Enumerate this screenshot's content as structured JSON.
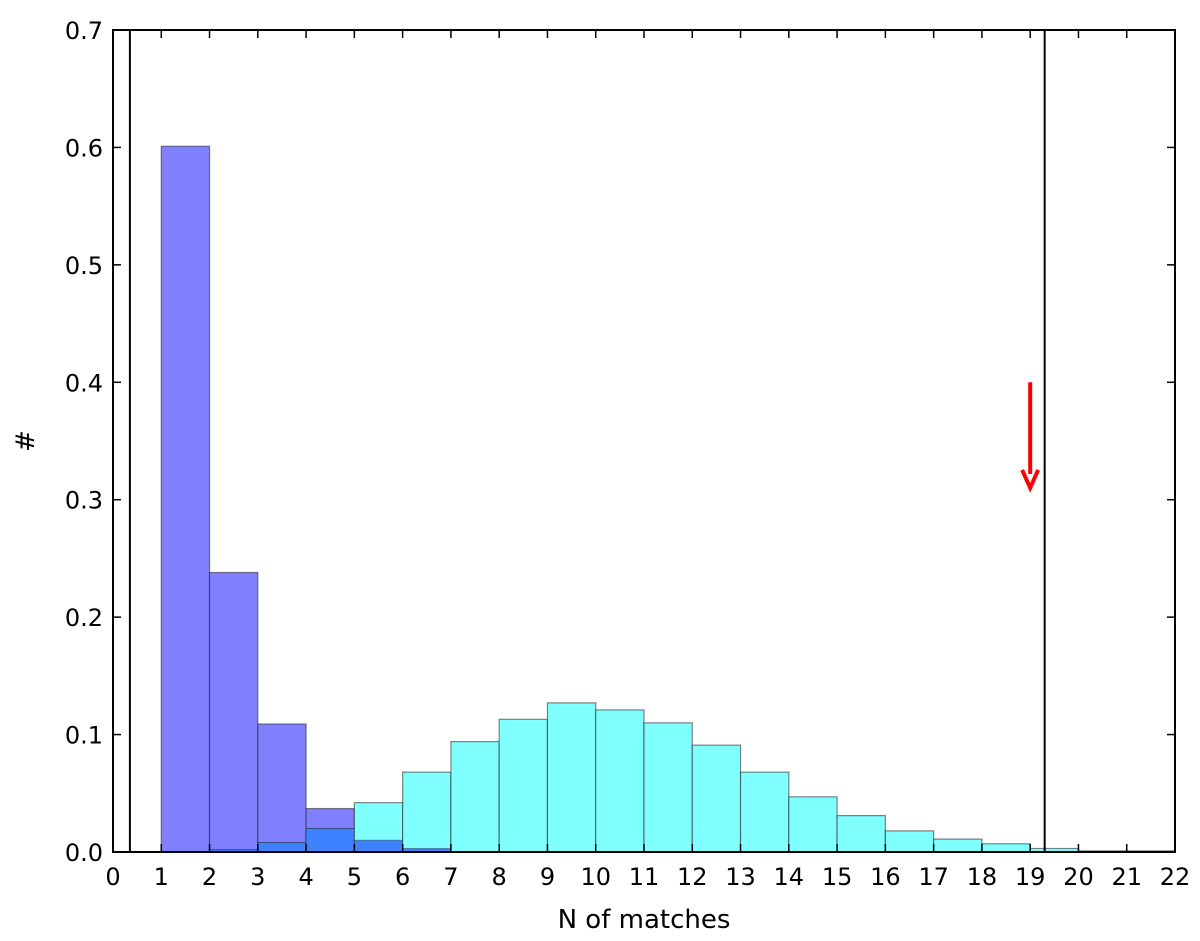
{
  "chart_data": {
    "type": "bar",
    "xlabel": "N of matches",
    "ylabel": "#",
    "xlim": [
      0,
      22
    ],
    "ylim": [
      0,
      0.7
    ],
    "x_ticks": [
      "0",
      "1",
      "2",
      "3",
      "4",
      "5",
      "6",
      "7",
      "8",
      "9",
      "10",
      "11",
      "12",
      "13",
      "14",
      "15",
      "16",
      "17",
      "18",
      "19",
      "20",
      "21",
      "22"
    ],
    "y_ticks": [
      "0.0",
      "0.1",
      "0.2",
      "0.3",
      "0.4",
      "0.5",
      "0.6",
      "0.7"
    ],
    "grid": false,
    "bin_edges": [
      0,
      1,
      2,
      3,
      4,
      5,
      6,
      7,
      8,
      9,
      10,
      11,
      12,
      13,
      14,
      15,
      16,
      17,
      18,
      19,
      20,
      21,
      22
    ],
    "series": [
      {
        "color": "#8080ff",
        "overlap_color": "#3d82ff",
        "values": [
          0,
          0.601,
          0.238,
          0.109,
          0.037,
          0.01,
          0.003,
          0,
          0,
          0,
          0,
          0,
          0,
          0,
          0,
          0,
          0,
          0,
          0,
          0,
          0,
          0
        ]
      },
      {
        "color": "#80ffff",
        "values": [
          0,
          0,
          0.002,
          0.008,
          0.02,
          0.042,
          0.068,
          0.094,
          0.113,
          0.127,
          0.121,
          0.11,
          0.091,
          0.068,
          0.047,
          0.031,
          0.018,
          0.011,
          0.007,
          0.003,
          0.001,
          0.001
        ]
      }
    ],
    "vertical_lines": [
      0.35,
      19.3
    ],
    "arrow": {
      "x": 19,
      "y_from": 0.4,
      "y_to": 0.31,
      "color": "#ff0000"
    }
  }
}
